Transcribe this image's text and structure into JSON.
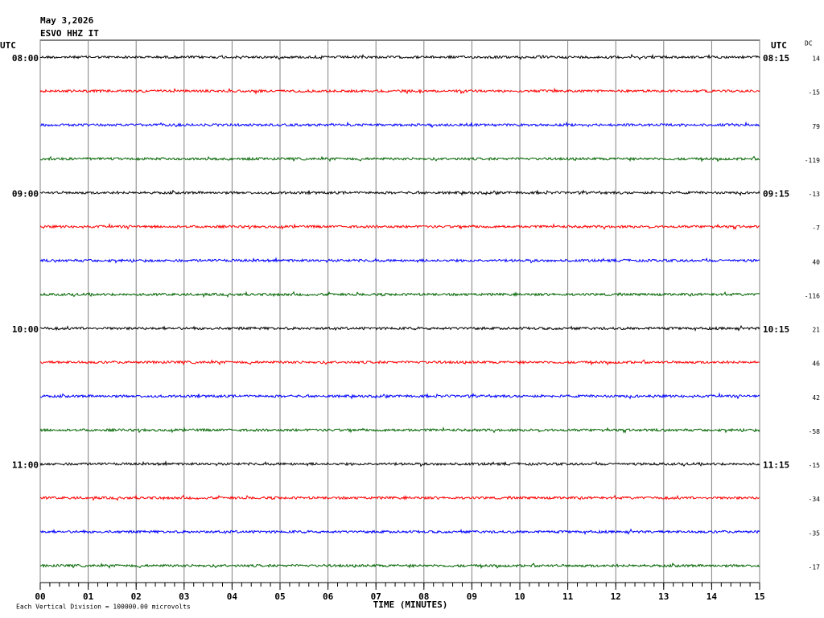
{
  "chart_data": {
    "type": "helicorder",
    "date": "May 3,2026",
    "station": "ESVO HHZ IT",
    "left_axis_title": "UTC",
    "right_axis_title": "UTC",
    "dc_title": "DC",
    "xlabel": "TIME (MINUTES)",
    "footnote": "Each Vertical Division = 100000.00 microvolts",
    "xlim": [
      0,
      15
    ],
    "xticks": [
      {
        "value": 0,
        "label": "00"
      },
      {
        "value": 1,
        "label": "01"
      },
      {
        "value": 2,
        "label": "02"
      },
      {
        "value": 3,
        "label": "03"
      },
      {
        "value": 4,
        "label": "04"
      },
      {
        "value": 5,
        "label": "05"
      },
      {
        "value": 6,
        "label": "06"
      },
      {
        "value": 7,
        "label": "07"
      },
      {
        "value": 8,
        "label": "08"
      },
      {
        "value": 9,
        "label": "09"
      },
      10,
      11,
      12,
      13,
      14,
      15
    ],
    "left_labels": [
      "08:00",
      null,
      null,
      null,
      "09:00",
      null,
      null,
      null,
      "10:00",
      null,
      null,
      null,
      "11:00",
      null,
      null,
      null
    ],
    "right_labels": [
      "08:15",
      null,
      null,
      null,
      "09:15",
      null,
      null,
      null,
      "10:15",
      null,
      null,
      null,
      "11:15",
      null,
      null,
      null
    ],
    "dc_values": [
      14,
      -15,
      79,
      -119,
      -13,
      -7,
      40,
      -116,
      21,
      46,
      42,
      -58,
      -15,
      -34,
      -35,
      -17
    ],
    "trace_colors": [
      "#000000",
      "#ff0000",
      "#0000ff",
      "#006400"
    ],
    "grid": true
  }
}
